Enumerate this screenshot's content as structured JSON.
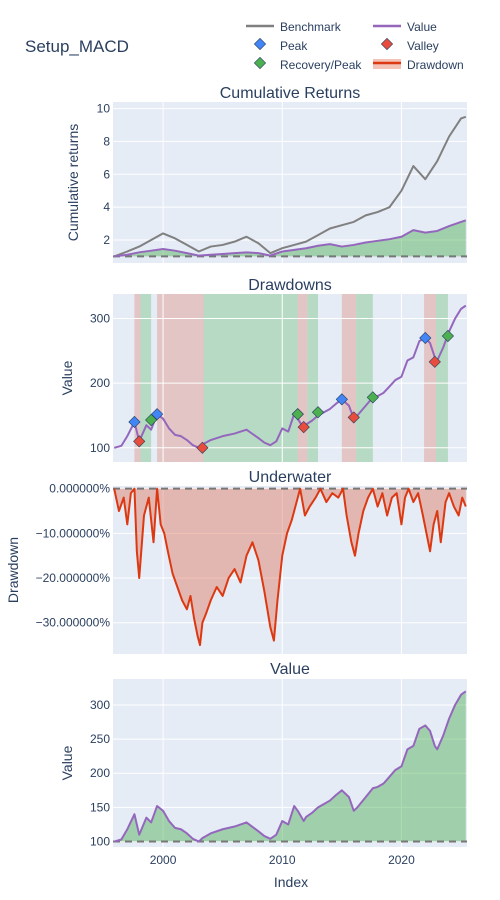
{
  "figure_title": "Setup_MACD",
  "x_axis_title": "Index",
  "x_ticks": [
    "2000",
    "2010",
    "2020"
  ],
  "legend": {
    "benchmark": "Benchmark",
    "value": "Value",
    "peak": "Peak",
    "valley": "Valley",
    "recovery": "Recovery/Peak",
    "drawdown": "Drawdown"
  },
  "colors": {
    "benchmark": "#808080",
    "value": "#9467bd",
    "peak": "#4285f4",
    "valley": "#e74c3c",
    "recovery": "#4caf50",
    "drawdown_line": "#dc3912",
    "drawdown_fill": "rgba(220,57,18,0.3)",
    "positive_fill": "rgba(76,175,80,0.45)",
    "red_span": "rgba(220,57,18,0.22)",
    "green_span": "rgba(76,175,80,0.30)",
    "plot_bg": "#e5ecf6"
  },
  "chart_data": [
    {
      "type": "line",
      "title": "Cumulative Returns",
      "ylabel": "Cumulative returns",
      "x_range": [
        1995.8,
        2025.5
      ],
      "ylim": [
        0.6,
        10.4
      ],
      "y_ticks": [
        "2",
        "4",
        "6",
        "8",
        "10"
      ],
      "baseline": 1,
      "series": [
        {
          "name": "Benchmark",
          "x": [
            1995.9,
            1997,
            1998,
            1999,
            2000,
            2001,
            2002,
            2003,
            2004,
            2005,
            2006,
            2007,
            2008,
            2009,
            2010,
            2011,
            2012,
            2013,
            2014,
            2015,
            2016,
            2017,
            2018,
            2019,
            2020,
            2021,
            2022,
            2023,
            2024,
            2025,
            2025.4
          ],
          "y": [
            1.0,
            1.3,
            1.6,
            2.0,
            2.4,
            2.1,
            1.7,
            1.3,
            1.6,
            1.7,
            1.9,
            2.2,
            1.8,
            1.2,
            1.5,
            1.7,
            1.9,
            2.3,
            2.7,
            2.9,
            3.1,
            3.5,
            3.7,
            4.0,
            5.0,
            6.5,
            5.7,
            6.8,
            8.3,
            9.4,
            9.5
          ]
        },
        {
          "name": "Value",
          "x": [
            1995.9,
            1997,
            1998,
            1999,
            2000,
            2001,
            2002,
            2003,
            2004,
            2005,
            2006,
            2007,
            2008,
            2009,
            2010,
            2011,
            2012,
            2013,
            2014,
            2015,
            2016,
            2017,
            2018,
            2019,
            2020,
            2021,
            2022,
            2023,
            2024,
            2025,
            2025.4
          ],
          "y": [
            1.0,
            1.1,
            1.25,
            1.35,
            1.45,
            1.35,
            1.2,
            1.05,
            1.1,
            1.15,
            1.2,
            1.25,
            1.2,
            1.05,
            1.3,
            1.4,
            1.5,
            1.65,
            1.75,
            1.6,
            1.7,
            1.85,
            1.95,
            2.05,
            2.2,
            2.6,
            2.45,
            2.55,
            2.85,
            3.1,
            3.2
          ]
        }
      ]
    },
    {
      "type": "line",
      "title": "Drawdowns",
      "ylabel": "Value",
      "x_range": [
        1995.8,
        2025.5
      ],
      "ylim": [
        78,
        338
      ],
      "y_ticks": [
        "100",
        "200",
        "300"
      ],
      "series": [
        {
          "name": "Value",
          "x": [
            1995.9,
            1996.5,
            1997,
            1997.6,
            1998,
            1998.6,
            1999,
            1999.5,
            2000,
            2000.5,
            2001,
            2001.5,
            2002,
            2002.5,
            2003,
            2003.3,
            2004,
            2005,
            2006,
            2007,
            2008,
            2008.5,
            2009,
            2009.5,
            2010,
            2010.5,
            2011,
            2011.3,
            2011.8,
            2012,
            2012.5,
            2013,
            2013.5,
            2014,
            2014.5,
            2015,
            2015.6,
            2016,
            2016.3,
            2017,
            2017.6,
            2018,
            2018.5,
            2019,
            2019.5,
            2020,
            2020.5,
            2021,
            2021.5,
            2022,
            2022.4,
            2022.8,
            2023,
            2023.5,
            2024,
            2024.5,
            2025,
            2025.4
          ],
          "y": [
            100,
            103,
            118,
            140,
            110,
            135,
            128,
            152,
            145,
            130,
            120,
            118,
            112,
            104,
            100,
            105,
            112,
            118,
            122,
            128,
            115,
            108,
            104,
            110,
            130,
            125,
            152,
            145,
            130,
            136,
            142,
            150,
            155,
            160,
            168,
            175,
            165,
            145,
            150,
            165,
            178,
            180,
            185,
            195,
            205,
            210,
            235,
            240,
            265,
            270,
            262,
            240,
            235,
            255,
            280,
            300,
            315,
            320
          ]
        }
      ],
      "peaks": {
        "x": [
          1997.6,
          1999.5,
          2011.3,
          2015,
          2022
        ],
        "y": [
          140,
          152,
          152,
          175,
          270
        ]
      },
      "valleys": {
        "x": [
          1998,
          2003.3,
          2011.8,
          2016,
          2022.8
        ],
        "y": [
          110,
          100,
          132,
          147,
          233
        ]
      },
      "recoveries": {
        "x": [
          1999,
          2011.3,
          2013,
          2017.6,
          2023.9
        ],
        "y": [
          143,
          152,
          155,
          178,
          273
        ]
      },
      "red_spans": [
        [
          1997.6,
          1998.1
        ],
        [
          1999.5,
          2003.4
        ],
        [
          2011.3,
          2012.1
        ],
        [
          2015,
          2016.2
        ],
        [
          2021.9,
          2022.9
        ]
      ],
      "green_spans": [
        [
          1998.1,
          1999
        ],
        [
          2003.4,
          2011.3
        ],
        [
          2012.1,
          2013
        ],
        [
          2016.2,
          2017.6
        ],
        [
          2022.9,
          2023.9
        ]
      ]
    },
    {
      "type": "area",
      "title": "Underwater",
      "ylabel": "Drawdown",
      "x_range": [
        1995.8,
        2025.5
      ],
      "ylim": [
        -37,
        0.6
      ],
      "y_ticks": [
        "0.000000%",
        "−10.000000%",
        "−20.000000%",
        "−30.000000%"
      ],
      "y_tick_values": [
        0,
        -10,
        -20,
        -30
      ],
      "series": [
        {
          "name": "Drawdown",
          "x": [
            1995.9,
            1996.3,
            1996.7,
            1997,
            1997.3,
            1997.6,
            1997.8,
            1998,
            1998.4,
            1998.8,
            1999.2,
            1999.5,
            1999.8,
            2000.1,
            2000.4,
            2000.8,
            2001.2,
            2001.6,
            2002,
            2002.3,
            2002.6,
            2002.9,
            2003.1,
            2003.3,
            2003.6,
            2004,
            2004.5,
            2005,
            2005.5,
            2006,
            2006.5,
            2007,
            2007.5,
            2008,
            2008.5,
            2009,
            2009.3,
            2009.6,
            2010,
            2010.4,
            2010.8,
            2011.2,
            2011.5,
            2011.9,
            2012.3,
            2012.8,
            2013.2,
            2013.7,
            2014.2,
            2014.7,
            2015.1,
            2015.4,
            2015.8,
            2016.1,
            2016.4,
            2016.8,
            2017.2,
            2017.6,
            2018,
            2018.4,
            2018.8,
            2019.2,
            2019.6,
            2020,
            2020.3,
            2020.6,
            2021,
            2021.4,
            2021.8,
            2022.1,
            2022.4,
            2022.7,
            2023,
            2023.3,
            2023.7,
            2024,
            2024.4,
            2024.8,
            2025.1,
            2025.4
          ],
          "y": [
            0,
            -5,
            -2,
            -8,
            -1,
            0,
            -14,
            -20,
            -6,
            -2,
            -12,
            0,
            -8,
            -10,
            -14,
            -19,
            -22,
            -25,
            -27,
            -24,
            -29,
            -33,
            -35,
            -30,
            -28,
            -25,
            -22,
            -24,
            -20,
            -18,
            -21,
            -15,
            -12,
            -16,
            -23,
            -31,
            -34,
            -25,
            -15,
            -10,
            -7,
            -3,
            0,
            -6,
            -4,
            -2,
            0,
            -3,
            -1,
            -2,
            0,
            -6,
            -12,
            -15,
            -10,
            -5,
            -2,
            0,
            -4,
            -1,
            -6,
            -2,
            -1,
            -8,
            -2,
            0,
            -3,
            -1,
            -6,
            -10,
            -14,
            -8,
            -5,
            -12,
            -3,
            -1,
            -4,
            -6,
            -2,
            -4
          ]
        }
      ]
    },
    {
      "type": "area",
      "title": "Value",
      "ylabel": "Value",
      "x_range": [
        1995.8,
        2025.5
      ],
      "ylim": [
        92,
        338
      ],
      "y_ticks": [
        "100",
        "150",
        "200",
        "250",
        "300"
      ],
      "baseline": 100,
      "series": [
        {
          "name": "Value",
          "x": [
            1995.9,
            1996.5,
            1997,
            1997.6,
            1998,
            1998.6,
            1999,
            1999.5,
            2000,
            2000.5,
            2001,
            2001.5,
            2002,
            2002.5,
            2003,
            2003.3,
            2004,
            2005,
            2006,
            2007,
            2008,
            2008.5,
            2009,
            2009.5,
            2010,
            2010.5,
            2011,
            2011.3,
            2011.8,
            2012,
            2012.5,
            2013,
            2013.5,
            2014,
            2014.5,
            2015,
            2015.6,
            2016,
            2016.3,
            2017,
            2017.6,
            2018,
            2018.5,
            2019,
            2019.5,
            2020,
            2020.5,
            2021,
            2021.5,
            2022,
            2022.4,
            2022.8,
            2023,
            2023.5,
            2024,
            2024.5,
            2025,
            2025.4
          ],
          "y": [
            100,
            103,
            118,
            140,
            110,
            135,
            128,
            152,
            145,
            130,
            120,
            118,
            112,
            104,
            100,
            105,
            112,
            118,
            122,
            128,
            115,
            108,
            104,
            110,
            130,
            125,
            152,
            145,
            130,
            136,
            142,
            150,
            155,
            160,
            168,
            175,
            165,
            145,
            150,
            165,
            178,
            180,
            185,
            195,
            205,
            210,
            235,
            240,
            265,
            270,
            262,
            240,
            235,
            255,
            280,
            300,
            315,
            320
          ]
        }
      ]
    }
  ]
}
